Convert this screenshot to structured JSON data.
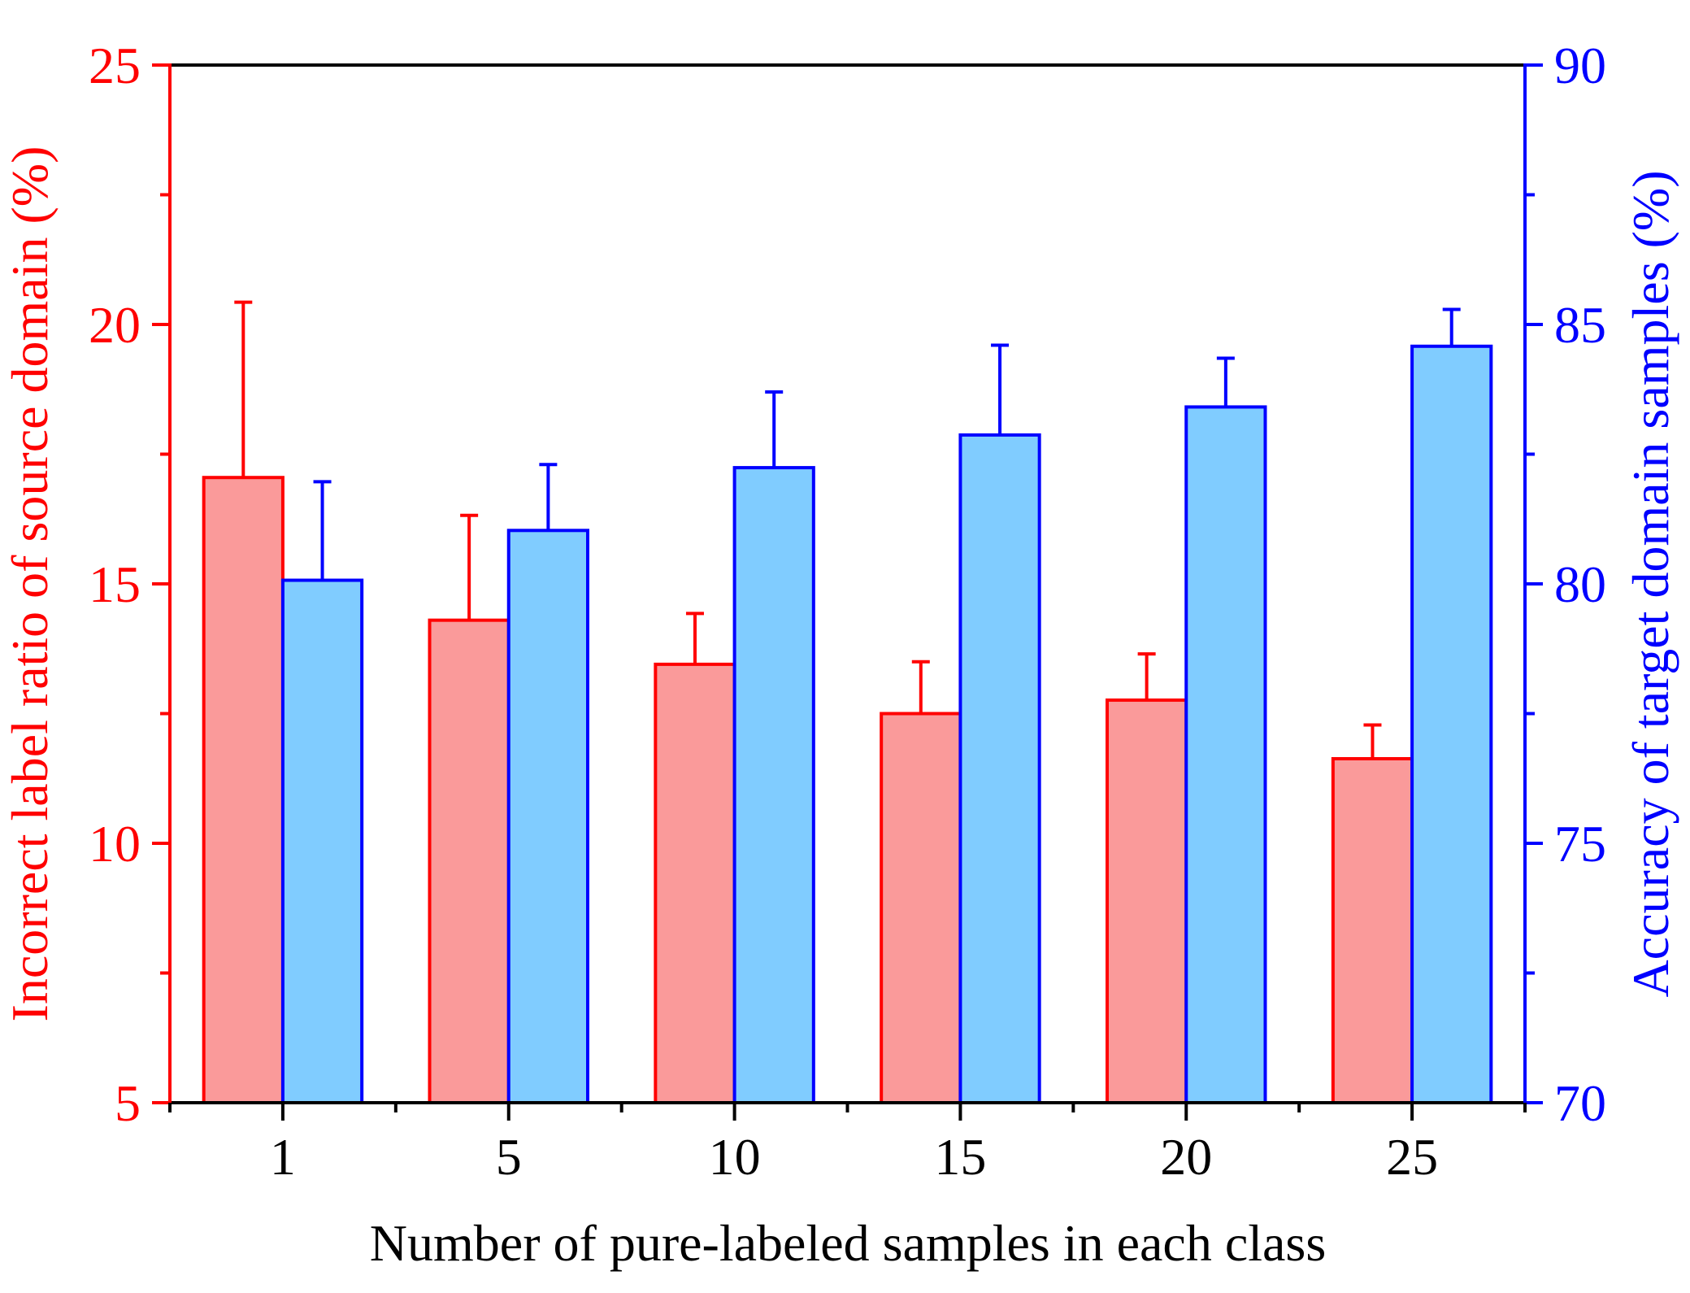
{
  "chart_data": {
    "type": "bar",
    "title": "",
    "xlabel": "Number of pure-labeled samples in each class",
    "ylabel_left": "Incorrect label ratio of source domain (%)",
    "ylabel_right": "Accuracy of target domain samples (%)",
    "categories": [
      "1",
      "5",
      "10",
      "15",
      "20",
      "25"
    ],
    "ylim_left": [
      5,
      25
    ],
    "ylim_right": [
      70,
      90
    ],
    "yticks_left": [
      "5",
      "10",
      "15",
      "20",
      "25"
    ],
    "yticks_right": [
      "70",
      "75",
      "80",
      "85",
      "90"
    ],
    "grid": false,
    "series": [
      {
        "name": "Incorrect label ratio of source domain",
        "axis": "left",
        "color": "#fa9a9a",
        "edge": "#ff0000",
        "values": [
          17.05,
          14.3,
          13.45,
          12.5,
          12.76,
          11.63
        ],
        "errors": [
          3.38,
          2.02,
          0.98,
          1.0,
          0.89,
          0.65
        ]
      },
      {
        "name": "Accuracy of target domain samples",
        "axis": "right",
        "color": "#80ccff",
        "edge": "#0000ff",
        "values": [
          80.07,
          81.03,
          82.24,
          82.87,
          83.41,
          84.58
        ],
        "errors": [
          1.9,
          1.27,
          1.46,
          1.73,
          0.94,
          0.71
        ]
      }
    ]
  }
}
